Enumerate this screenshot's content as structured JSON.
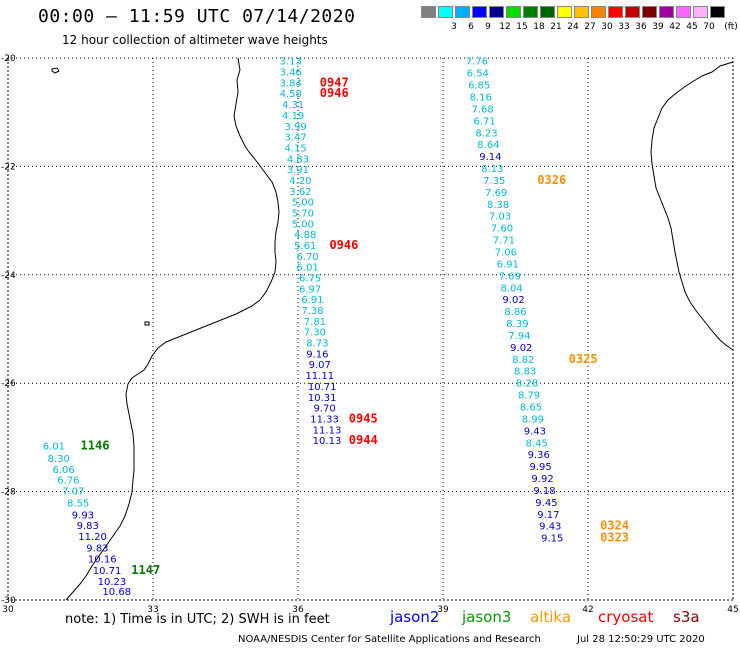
{
  "header": {
    "title": "00:00 — 11:59 UTC 07/14/2020",
    "subtitle": "12 hour collection of altimeter wave heights"
  },
  "legend": {
    "unit": "(ft)",
    "bins": [
      {
        "color": "#808080",
        "label": ""
      },
      {
        "color": "#00ffff",
        "label": "3"
      },
      {
        "color": "#00b0ff",
        "label": "6"
      },
      {
        "color": "#0000ff",
        "label": "9"
      },
      {
        "color": "#00008b",
        "label": "12"
      },
      {
        "color": "#00dd00",
        "label": "15"
      },
      {
        "color": "#008000",
        "label": "18"
      },
      {
        "color": "#006400",
        "label": "21"
      },
      {
        "color": "#ffff00",
        "label": "24"
      },
      {
        "color": "#ffc000",
        "label": "27"
      },
      {
        "color": "#ff8000",
        "label": "30"
      },
      {
        "color": "#ff0000",
        "label": "33"
      },
      {
        "color": "#c00000",
        "label": "36"
      },
      {
        "color": "#800000",
        "label": "39"
      },
      {
        "color": "#a000a0",
        "label": "42"
      },
      {
        "color": "#ff66ff",
        "label": "45"
      },
      {
        "color": "#ffb0ff",
        "label": "70"
      },
      {
        "color": "#000000",
        "label": ""
      }
    ]
  },
  "map": {
    "lon_range": [
      30,
      45
    ],
    "lat_range": [
      -20,
      -30
    ],
    "lon_ticks": [
      "30",
      "33",
      "36",
      "39",
      "42",
      "45"
    ],
    "lat_ticks": [
      "-20",
      "-22",
      "-24",
      "-26",
      "-28",
      "-30"
    ],
    "colors": {
      "cyan": "#00bcd4",
      "blue": "#0000cc",
      "red": "#ff0000",
      "green": "#007a00",
      "orange": "#ff9000"
    },
    "track_west": [
      {
        "lon": 30.95,
        "lat": -27.15,
        "v": "6.01",
        "c": "cyan"
      },
      {
        "lon": 31.05,
        "lat": -27.38,
        "v": "8.30",
        "c": "cyan"
      },
      {
        "lon": 31.15,
        "lat": -27.58,
        "v": "6.06",
        "c": "cyan"
      },
      {
        "lon": 31.25,
        "lat": -27.78,
        "v": "6.76",
        "c": "cyan"
      },
      {
        "lon": 31.35,
        "lat": -27.98,
        "v": "7.07",
        "c": "cyan"
      },
      {
        "lon": 31.45,
        "lat": -28.2,
        "v": "8.55",
        "c": "cyan"
      },
      {
        "lon": 31.55,
        "lat": -28.42,
        "v": "9.93",
        "c": "blue"
      },
      {
        "lon": 31.65,
        "lat": -28.62,
        "v": "9.83",
        "c": "blue"
      },
      {
        "lon": 31.75,
        "lat": -28.82,
        "v": "11.20",
        "c": "blue"
      },
      {
        "lon": 31.85,
        "lat": -29.03,
        "v": "9.83",
        "c": "blue"
      },
      {
        "lon": 31.95,
        "lat": -29.23,
        "v": "10.16",
        "c": "blue"
      },
      {
        "lon": 32.05,
        "lat": -29.45,
        "v": "10.71",
        "c": "blue"
      },
      {
        "lon": 32.15,
        "lat": -29.65,
        "v": "10.23",
        "c": "blue"
      },
      {
        "lon": 32.25,
        "lat": -29.83,
        "v": "10.68",
        "c": "blue"
      }
    ],
    "track_west_times": [
      {
        "lon": 31.8,
        "lat": -27.15,
        "t": "1146",
        "c": "green"
      },
      {
        "lon": 32.85,
        "lat": -29.45,
        "t": "1147",
        "c": "green"
      }
    ],
    "track_mid": [
      {
        "lon": 35.85,
        "lat": -20.05,
        "v": "3.13",
        "c": "cyan"
      },
      {
        "lon": 35.85,
        "lat": -20.25,
        "v": "3.46",
        "c": "cyan"
      },
      {
        "lon": 35.85,
        "lat": -20.45,
        "v": "3.84",
        "c": "cyan"
      },
      {
        "lon": 35.85,
        "lat": -20.65,
        "v": "4.58",
        "c": "cyan"
      },
      {
        "lon": 35.9,
        "lat": -20.85,
        "v": "4.31",
        "c": "cyan"
      },
      {
        "lon": 35.9,
        "lat": -21.05,
        "v": "4.19",
        "c": "cyan"
      },
      {
        "lon": 35.95,
        "lat": -21.25,
        "v": "3.99",
        "c": "cyan"
      },
      {
        "lon": 35.95,
        "lat": -21.45,
        "v": "3.47",
        "c": "cyan"
      },
      {
        "lon": 35.95,
        "lat": -21.65,
        "v": "4.15",
        "c": "cyan"
      },
      {
        "lon": 36.0,
        "lat": -21.85,
        "v": "4.83",
        "c": "cyan"
      },
      {
        "lon": 36.0,
        "lat": -22.05,
        "v": "3.91",
        "c": "cyan"
      },
      {
        "lon": 36.05,
        "lat": -22.25,
        "v": "4.20",
        "c": "cyan"
      },
      {
        "lon": 36.05,
        "lat": -22.45,
        "v": "3.62",
        "c": "cyan"
      },
      {
        "lon": 36.1,
        "lat": -22.65,
        "v": "5.00",
        "c": "cyan"
      },
      {
        "lon": 36.1,
        "lat": -22.85,
        "v": "5.70",
        "c": "cyan"
      },
      {
        "lon": 36.1,
        "lat": -23.05,
        "v": "5.00",
        "c": "cyan"
      },
      {
        "lon": 36.15,
        "lat": -23.25,
        "v": "4.88",
        "c": "cyan"
      },
      {
        "lon": 36.15,
        "lat": -23.45,
        "v": "5.61",
        "c": "cyan"
      },
      {
        "lon": 36.2,
        "lat": -23.65,
        "v": "6.70",
        "c": "cyan"
      },
      {
        "lon": 36.2,
        "lat": -23.85,
        "v": "6.01",
        "c": "cyan"
      },
      {
        "lon": 36.25,
        "lat": -24.05,
        "v": "6.75",
        "c": "cyan"
      },
      {
        "lon": 36.25,
        "lat": -24.25,
        "v": "6.97",
        "c": "cyan"
      },
      {
        "lon": 36.3,
        "lat": -24.45,
        "v": "6.91",
        "c": "cyan"
      },
      {
        "lon": 36.3,
        "lat": -24.65,
        "v": "7.38",
        "c": "cyan"
      },
      {
        "lon": 36.35,
        "lat": -24.85,
        "v": "7.81",
        "c": "cyan"
      },
      {
        "lon": 36.35,
        "lat": -25.05,
        "v": "7.30",
        "c": "cyan"
      },
      {
        "lon": 36.4,
        "lat": -25.25,
        "v": "8.73",
        "c": "cyan"
      },
      {
        "lon": 36.4,
        "lat": -25.45,
        "v": "9.16",
        "c": "blue"
      },
      {
        "lon": 36.45,
        "lat": -25.65,
        "v": "9.07",
        "c": "blue"
      },
      {
        "lon": 36.45,
        "lat": -25.85,
        "v": "11.11",
        "c": "blue"
      },
      {
        "lon": 36.5,
        "lat": -26.05,
        "v": "10.71",
        "c": "blue"
      },
      {
        "lon": 36.5,
        "lat": -26.25,
        "v": "10.31",
        "c": "blue"
      },
      {
        "lon": 36.55,
        "lat": -26.45,
        "v": "9.70",
        "c": "blue"
      },
      {
        "lon": 36.55,
        "lat": -26.65,
        "v": "11.33",
        "c": "blue"
      },
      {
        "lon": 36.6,
        "lat": -26.85,
        "v": "11.13",
        "c": "blue"
      },
      {
        "lon": 36.6,
        "lat": -27.05,
        "v": "10.13",
        "c": "blue"
      }
    ],
    "track_mid_times": [
      {
        "lon": 36.75,
        "lat": -20.45,
        "t": "0947",
        "c": "red"
      },
      {
        "lon": 36.75,
        "lat": -20.65,
        "t": "0946",
        "c": "red"
      },
      {
        "lon": 36.95,
        "lat": -23.45,
        "t": "0946",
        "c": "red"
      },
      {
        "lon": 37.35,
        "lat": -26.65,
        "t": "0945",
        "c": "red"
      },
      {
        "lon": 37.35,
        "lat": -27.05,
        "t": "0944",
        "c": "red"
      }
    ],
    "track_east": [
      {
        "lon": 39.7,
        "lat": -20.05,
        "v": "7.76",
        "c": "cyan"
      },
      {
        "lon": 39.72,
        "lat": -20.27,
        "v": "6.54",
        "c": "cyan"
      },
      {
        "lon": 39.75,
        "lat": -20.49,
        "v": "6.85",
        "c": "cyan"
      },
      {
        "lon": 39.78,
        "lat": -20.71,
        "v": "8.16",
        "c": "cyan"
      },
      {
        "lon": 39.82,
        "lat": -20.93,
        "v": "7.68",
        "c": "cyan"
      },
      {
        "lon": 39.86,
        "lat": -21.15,
        "v": "6.71",
        "c": "cyan"
      },
      {
        "lon": 39.9,
        "lat": -21.37,
        "v": "8.23",
        "c": "cyan"
      },
      {
        "lon": 39.94,
        "lat": -21.59,
        "v": "8.64",
        "c": "cyan"
      },
      {
        "lon": 39.98,
        "lat": -21.81,
        "v": "9.14",
        "c": "blue"
      },
      {
        "lon": 40.02,
        "lat": -22.03,
        "v": "8.13",
        "c": "cyan"
      },
      {
        "lon": 40.06,
        "lat": -22.25,
        "v": "7.35",
        "c": "cyan"
      },
      {
        "lon": 40.1,
        "lat": -22.47,
        "v": "7.69",
        "c": "cyan"
      },
      {
        "lon": 40.14,
        "lat": -22.69,
        "v": "8.38",
        "c": "cyan"
      },
      {
        "lon": 40.18,
        "lat": -22.91,
        "v": "7.03",
        "c": "cyan"
      },
      {
        "lon": 40.22,
        "lat": -23.13,
        "v": "7.60",
        "c": "cyan"
      },
      {
        "lon": 40.26,
        "lat": -23.35,
        "v": "7.71",
        "c": "cyan"
      },
      {
        "lon": 40.3,
        "lat": -23.57,
        "v": "7.06",
        "c": "cyan"
      },
      {
        "lon": 40.34,
        "lat": -23.79,
        "v": "6.91",
        "c": "cyan"
      },
      {
        "lon": 40.38,
        "lat": -24.01,
        "v": "7.69",
        "c": "cyan"
      },
      {
        "lon": 40.42,
        "lat": -24.23,
        "v": "8.04",
        "c": "cyan"
      },
      {
        "lon": 40.46,
        "lat": -24.45,
        "v": "9.02",
        "c": "blue"
      },
      {
        "lon": 40.5,
        "lat": -24.67,
        "v": "8.86",
        "c": "cyan"
      },
      {
        "lon": 40.54,
        "lat": -24.89,
        "v": "8.39",
        "c": "cyan"
      },
      {
        "lon": 40.58,
        "lat": -25.11,
        "v": "7.94",
        "c": "cyan"
      },
      {
        "lon": 40.62,
        "lat": -25.33,
        "v": "9.02",
        "c": "blue"
      },
      {
        "lon": 40.66,
        "lat": -25.55,
        "v": "8.82",
        "c": "cyan"
      },
      {
        "lon": 40.7,
        "lat": -25.77,
        "v": "8.83",
        "c": "cyan"
      },
      {
        "lon": 40.74,
        "lat": -25.99,
        "v": "8.28",
        "c": "cyan"
      },
      {
        "lon": 40.78,
        "lat": -26.21,
        "v": "8.79",
        "c": "cyan"
      },
      {
        "lon": 40.82,
        "lat": -26.43,
        "v": "8.65",
        "c": "cyan"
      },
      {
        "lon": 40.86,
        "lat": -26.65,
        "v": "8.99",
        "c": "cyan"
      },
      {
        "lon": 40.9,
        "lat": -26.87,
        "v": "9.43",
        "c": "blue"
      },
      {
        "lon": 40.94,
        "lat": -27.09,
        "v": "8.45",
        "c": "cyan"
      },
      {
        "lon": 40.98,
        "lat": -27.31,
        "v": "9.36",
        "c": "blue"
      },
      {
        "lon": 41.02,
        "lat": -27.53,
        "v": "9.95",
        "c": "blue"
      },
      {
        "lon": 41.06,
        "lat": -27.75,
        "v": "9.92",
        "c": "blue"
      },
      {
        "lon": 41.1,
        "lat": -27.97,
        "v": "9.18",
        "c": "blue"
      },
      {
        "lon": 41.14,
        "lat": -28.19,
        "v": "9.45",
        "c": "blue"
      },
      {
        "lon": 41.18,
        "lat": -28.41,
        "v": "9.17",
        "c": "blue"
      },
      {
        "lon": 41.22,
        "lat": -28.63,
        "v": "9.43",
        "c": "blue"
      },
      {
        "lon": 41.26,
        "lat": -28.85,
        "v": "9.15",
        "c": "blue"
      }
    ],
    "track_east_times": [
      {
        "lon": 41.25,
        "lat": -22.25,
        "t": "0326",
        "c": "orange"
      },
      {
        "lon": 41.9,
        "lat": -25.55,
        "t": "0325",
        "c": "orange"
      },
      {
        "lon": 42.55,
        "lat": -28.63,
        "t": "0324",
        "c": "orange"
      },
      {
        "lon": 42.55,
        "lat": -28.85,
        "t": "0323",
        "c": "orange"
      }
    ]
  },
  "footer": {
    "note": "note: 1) Time is in UTC; 2) SWH is in feet",
    "satellites": [
      {
        "name": "jason2",
        "color": "#0000ff"
      },
      {
        "name": "jason3",
        "color": "#00a000"
      },
      {
        "name": "altika",
        "color": "#ff9900"
      },
      {
        "name": "cryosat",
        "color": "#ff0000"
      },
      {
        "name": "s3a",
        "color": "#8b0000"
      }
    ],
    "credit": "NOAA/NESDIS Center for Satellite Applications and Research",
    "timestamp": "Jul 28 12:50:29 UTC 2020"
  }
}
